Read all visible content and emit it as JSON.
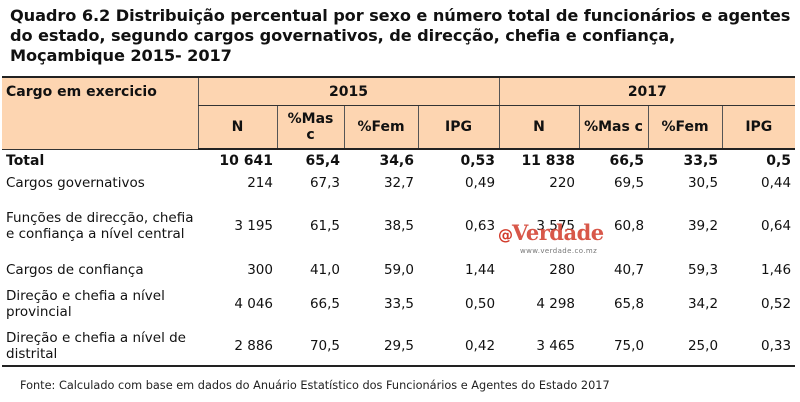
{
  "title": "Quadro 6.2 Distribuição percentual por sexo e número total de funcionários e agentes do estado, segundo cargos governativos, de direcção, chefia e confiança, Moçambique 2015- 2017",
  "header": {
    "cargo": "Cargo em exercicio",
    "years": [
      "2015",
      "2017"
    ],
    "subcols": [
      "N",
      "%Mas c",
      "%Fem",
      "IPG"
    ]
  },
  "rows": [
    {
      "label": "Total",
      "bold": true,
      "v2015": [
        "10 641",
        "65,4",
        "34,6",
        "0,53"
      ],
      "v2017": [
        "11 838",
        "66,5",
        "33,5",
        "0,5"
      ]
    },
    {
      "label": "Cargos governativos",
      "v2015": [
        "214",
        "67,3",
        "32,7",
        "0,49"
      ],
      "v2017": [
        "220",
        "69,5",
        "30,5",
        "0,44"
      ]
    },
    {
      "label": "Funções de direcção, chefia e confiança a nível central",
      "v2015": [
        "3 195",
        "61,5",
        "38,5",
        "0,63"
      ],
      "v2017": [
        "3 575",
        "60,8",
        "39,2",
        "0,64"
      ]
    },
    {
      "label": "Cargos de confiança",
      "v2015": [
        "300",
        "41,0",
        "59,0",
        "1,44"
      ],
      "v2017": [
        "280",
        "40,7",
        "59,3",
        "1,46"
      ]
    },
    {
      "label": "Direção e chefia a nível provincial",
      "v2015": [
        "4 046",
        "66,5",
        "33,5",
        "0,50"
      ],
      "v2017": [
        "4 298",
        "65,8",
        "34,2",
        "0,52"
      ]
    },
    {
      "label": "Direção e chefia a nível de distrital",
      "v2015": [
        "2 886",
        "70,5",
        "29,5",
        "0,42"
      ],
      "v2017": [
        "3 465",
        "75,0",
        "25,0",
        "0,33"
      ]
    }
  ],
  "watermark": {
    "text": "Verdade",
    "url": "www.verdade.co.mz"
  },
  "footer": "Fonte: Calculado com base em dados do Anuário Estatístico dos Funcionários e Agentes do Estado 2017"
}
